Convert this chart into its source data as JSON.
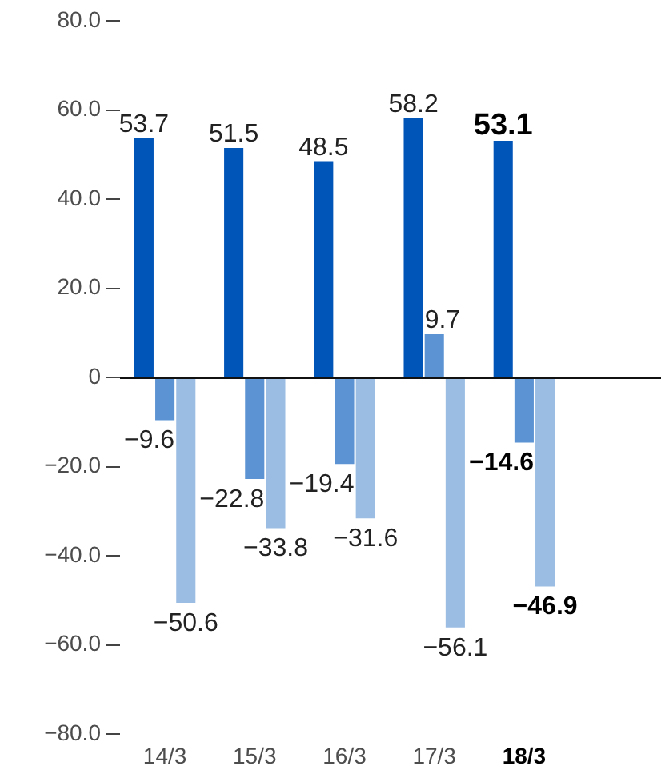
{
  "chart_data": {
    "type": "bar",
    "categories": [
      "14/3",
      "15/3",
      "16/3",
      "17/3",
      "18/3"
    ],
    "series": [
      {
        "color": "#0055b8",
        "values": [
          53.7,
          51.5,
          48.5,
          58.2,
          53.1
        ],
        "value_labels": [
          "53.7",
          "51.5",
          "48.5",
          "58.2",
          "53.1"
        ]
      },
      {
        "color": "#5b93d3",
        "values": [
          -9.6,
          -22.8,
          -19.4,
          9.7,
          -14.6
        ],
        "value_labels": [
          "−9.6",
          "−22.8",
          "−19.4",
          "9.7",
          "−14.6"
        ]
      },
      {
        "color": "#9bbde4",
        "values": [
          -50.6,
          -33.8,
          -31.6,
          -56.1,
          -46.9
        ],
        "value_labels": [
          "−50.6",
          "−33.8",
          "−31.6",
          "−56.1",
          "−46.9"
        ]
      }
    ],
    "ylim": [
      -80,
      80
    ],
    "yticks": [
      {
        "value": -80,
        "label": "−80.0"
      },
      {
        "value": -60,
        "label": "−60.0"
      },
      {
        "value": -40,
        "label": "−40.0"
      },
      {
        "value": -20,
        "label": "−20.0"
      },
      0,
      {
        "value": 20,
        "label": "20.0"
      },
      {
        "value": 40,
        "label": "40.0"
      },
      {
        "value": 60,
        "label": "60.0"
      },
      {
        "value": 80,
        "label": "80.0"
      }
    ],
    "ref_lines": [
      {
        "axis": "y",
        "value": 0,
        "color": "#111111"
      }
    ]
  }
}
